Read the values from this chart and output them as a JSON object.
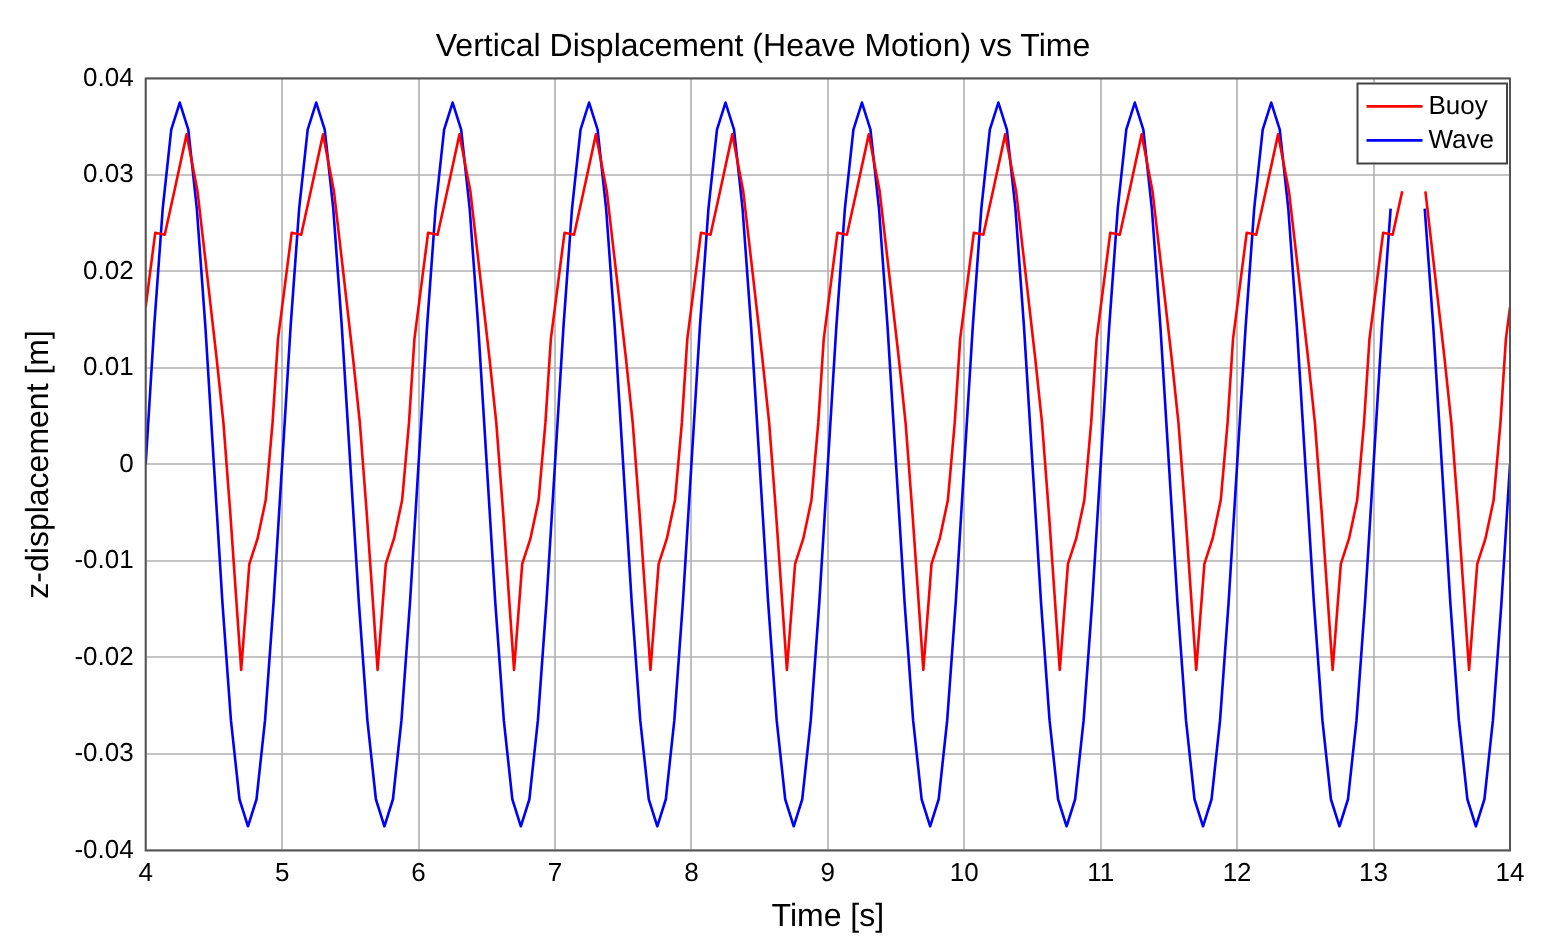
{
  "chart_data": {
    "type": "line",
    "title": "Vertical Displacement (Heave Motion) vs Time",
    "xlabel": "Time [s]",
    "ylabel": "z-displacement [m]",
    "xlim": [
      4,
      14
    ],
    "xticks": [
      4,
      5,
      6,
      7,
      8,
      9,
      10,
      11,
      12,
      13,
      14
    ],
    "ylim": [
      -0.04,
      0.04
    ],
    "yticks": [
      -0.04,
      -0.03,
      -0.02,
      -0.01,
      0,
      0.01,
      0.02,
      0.03,
      0.04
    ],
    "grid": true,
    "legend": "top right",
    "marker": "none",
    "line_style": "solid",
    "series": [
      {
        "name": "Buoy",
        "color": "#ff0000",
        "x": [
          4,
          4.07,
          4.14,
          4.21,
          4.3,
          4.38,
          4.45,
          4.52,
          4.57,
          4.62,
          4.7,
          4.76,
          4.82,
          4.88,
          4.93,
          4.97,
          5,
          5.07,
          5.14,
          5.21,
          5.3,
          5.38,
          5.45,
          5.52,
          5.57,
          5.62,
          5.7,
          5.76,
          5.82,
          5.88,
          5.93,
          5.97,
          6,
          6.07,
          6.14,
          6.21,
          6.3,
          6.38,
          6.45,
          6.52,
          6.57,
          6.62,
          6.7,
          6.76,
          6.82,
          6.88,
          6.93,
          6.97,
          7,
          7.07,
          7.14,
          7.21,
          7.3,
          7.38,
          7.45,
          7.52,
          7.57,
          7.62,
          7.7,
          7.76,
          7.82,
          7.88,
          7.93,
          7.97,
          8,
          8.07,
          8.14,
          8.21,
          8.3,
          8.38,
          8.45,
          8.52,
          8.57,
          8.62,
          8.7,
          8.76,
          8.82,
          8.88,
          8.93,
          8.97,
          9,
          9.07,
          9.14,
          9.21,
          9.3,
          9.38,
          9.45,
          9.52,
          9.57,
          9.62,
          9.7,
          9.76,
          9.82,
          9.88,
          9.93,
          9.97,
          10,
          10.07,
          10.14,
          10.21,
          10.3,
          10.38,
          10.45,
          10.52,
          10.57,
          10.62,
          10.7,
          10.76,
          10.82,
          10.88,
          10.93,
          10.97,
          11,
          11.07,
          11.14,
          11.21,
          11.3,
          11.38,
          11.45,
          11.52,
          11.57,
          11.62,
          11.7,
          11.76,
          11.82,
          11.88,
          11.93,
          11.97,
          12,
          12.07,
          12.14,
          12.21,
          12.3,
          12.38,
          12.45,
          12.52,
          12.57,
          12.62,
          12.7,
          12.76,
          12.82,
          12.88,
          12.93,
          12.97,
          13,
          13.07,
          13.14,
          13.21,
          13.3,
          13.38,
          13.45,
          13.52,
          13.57,
          13.62,
          13.7,
          13.76,
          13.82,
          13.88,
          13.93,
          13.97,
          14
        ],
        "values": [
          0.0163,
          0.024,
          0.0238,
          0.0283,
          0.0342,
          0.0283,
          0.0197,
          0.011,
          0.0043,
          -0.005,
          -0.0213,
          -0.0103,
          -0.0077,
          -0.0037,
          0.0043,
          0.013,
          0.0163,
          0.024,
          0.0238,
          0.0283,
          0.0342,
          0.0283,
          0.0197,
          0.011,
          0.0043,
          -0.005,
          -0.0213,
          -0.0103,
          -0.0077,
          -0.0037,
          0.0043,
          0.013,
          0.0163,
          0.024,
          0.0238,
          0.0283,
          0.0342,
          0.0283,
          0.0197,
          0.011,
          0.0043,
          -0.005,
          -0.0213,
          -0.0103,
          -0.0077,
          -0.0037,
          0.0043,
          0.013,
          0.0163,
          0.024,
          0.0238,
          0.0283,
          0.0342,
          0.0283,
          0.0197,
          0.011,
          0.0043,
          -0.005,
          -0.0213,
          -0.0103,
          -0.0077,
          -0.0037,
          0.0043,
          0.013,
          0.0163,
          0.024,
          0.0238,
          0.0283,
          0.0342,
          0.0283,
          0.0197,
          0.011,
          0.0043,
          -0.005,
          -0.0213,
          -0.0103,
          -0.0077,
          -0.0037,
          0.0043,
          0.013,
          0.0163,
          0.024,
          0.0238,
          0.0283,
          0.0342,
          0.0283,
          0.0197,
          0.011,
          0.0043,
          -0.005,
          -0.0213,
          -0.0103,
          -0.0077,
          -0.0037,
          0.0043,
          0.013,
          0.0163,
          0.024,
          0.0238,
          0.0283,
          0.0342,
          0.0283,
          0.0197,
          0.011,
          0.0043,
          -0.005,
          -0.0213,
          -0.0103,
          -0.0077,
          -0.0037,
          0.0043,
          0.013,
          0.0163,
          0.024,
          0.0238,
          0.0283,
          0.0342,
          0.0283,
          0.0197,
          0.011,
          0.0043,
          -0.005,
          -0.0213,
          -0.0103,
          -0.0077,
          -0.0037,
          0.0043,
          0.013,
          0.0163,
          0.024,
          0.0238,
          0.0283,
          0.0342,
          0.0283,
          0.0197,
          0.011,
          0.0043,
          -0.005,
          -0.0213,
          -0.0103,
          -0.0077,
          -0.0037,
          0.0043,
          0.013,
          0.0163,
          0.024,
          0.0238,
          0.0283,
          null,
          0.0283,
          0.0197,
          0.011,
          0.0043,
          -0.005,
          -0.0213,
          -0.0103,
          -0.0077,
          -0.0037,
          0.0043,
          0.013,
          0.0163
        ]
      },
      {
        "name": "Wave",
        "color": "#0000ff",
        "x": [
          4,
          4.0625,
          4.125,
          4.1875,
          4.25,
          4.3125,
          4.375,
          4.4375,
          4.5,
          4.5625,
          4.625,
          4.6875,
          4.75,
          4.8125,
          4.875,
          4.9375,
          5,
          5.0625,
          5.125,
          5.1875,
          5.25,
          5.3125,
          5.375,
          5.4375,
          5.5,
          5.5625,
          5.625,
          5.6875,
          5.75,
          5.8125,
          5.875,
          5.9375,
          6,
          6.0625,
          6.125,
          6.1875,
          6.25,
          6.3125,
          6.375,
          6.4375,
          6.5,
          6.5625,
          6.625,
          6.6875,
          6.75,
          6.8125,
          6.875,
          6.9375,
          7,
          7.0625,
          7.125,
          7.1875,
          7.25,
          7.3125,
          7.375,
          7.4375,
          7.5,
          7.5625,
          7.625,
          7.6875,
          7.75,
          7.8125,
          7.875,
          7.9375,
          8,
          8.0625,
          8.125,
          8.1875,
          8.25,
          8.3125,
          8.375,
          8.4375,
          8.5,
          8.5625,
          8.625,
          8.6875,
          8.75,
          8.8125,
          8.875,
          8.9375,
          9,
          9.0625,
          9.125,
          9.1875,
          9.25,
          9.3125,
          9.375,
          9.4375,
          9.5,
          9.5625,
          9.625,
          9.6875,
          9.75,
          9.8125,
          9.875,
          9.9375,
          10,
          10.0625,
          10.125,
          10.1875,
          10.25,
          10.3125,
          10.375,
          10.4375,
          10.5,
          10.5625,
          10.625,
          10.6875,
          10.75,
          10.8125,
          10.875,
          10.9375,
          11,
          11.0625,
          11.125,
          11.1875,
          11.25,
          11.3125,
          11.375,
          11.4375,
          11.5,
          11.5625,
          11.625,
          11.6875,
          11.75,
          11.8125,
          11.875,
          11.9375,
          12,
          12.0625,
          12.125,
          12.1875,
          12.25,
          12.3125,
          12.375,
          12.4375,
          12.5,
          12.5625,
          12.625,
          12.6875,
          12.75,
          12.8125,
          12.875,
          12.9375,
          13,
          13.0625,
          13.125,
          13.1875,
          13.25,
          13.3125,
          13.375,
          13.4375,
          13.5,
          13.5625,
          13.625,
          13.6875,
          13.75,
          13.8125,
          13.875,
          13.9375,
          14
        ],
        "values": [
          0,
          0.0143,
          0.0265,
          0.0347,
          0.0375,
          0.0347,
          0.0265,
          0.0143,
          0,
          -0.0143,
          -0.0265,
          -0.0347,
          -0.0375,
          -0.0347,
          -0.0265,
          -0.0143,
          0,
          0.0143,
          0.0265,
          0.0347,
          0.0375,
          0.0347,
          0.0265,
          0.0143,
          0,
          -0.0143,
          -0.0265,
          -0.0347,
          -0.0375,
          -0.0347,
          -0.0265,
          -0.0143,
          0,
          0.0143,
          0.0265,
          0.0347,
          0.0375,
          0.0347,
          0.0265,
          0.0143,
          0,
          -0.0143,
          -0.0265,
          -0.0347,
          -0.0375,
          -0.0347,
          -0.0265,
          -0.0143,
          0,
          0.0143,
          0.0265,
          0.0347,
          0.0375,
          0.0347,
          0.0265,
          0.0143,
          0,
          -0.0143,
          -0.0265,
          -0.0347,
          -0.0375,
          -0.0347,
          -0.0265,
          -0.0143,
          0,
          0.0143,
          0.0265,
          0.0347,
          0.0375,
          0.0347,
          0.0265,
          0.0143,
          0,
          -0.0143,
          -0.0265,
          -0.0347,
          -0.0375,
          -0.0347,
          -0.0265,
          -0.0143,
          0,
          0.0143,
          0.0265,
          0.0347,
          0.0375,
          0.0347,
          0.0265,
          0.0143,
          0,
          -0.0143,
          -0.0265,
          -0.0347,
          -0.0375,
          -0.0347,
          -0.0265,
          -0.0143,
          0,
          0.0143,
          0.0265,
          0.0347,
          0.0375,
          0.0347,
          0.0265,
          0.0143,
          0,
          -0.0143,
          -0.0265,
          -0.0347,
          -0.0375,
          -0.0347,
          -0.0265,
          -0.0143,
          0,
          0.0143,
          0.0265,
          0.0347,
          0.0375,
          0.0347,
          0.0265,
          0.0143,
          0,
          -0.0143,
          -0.0265,
          -0.0347,
          -0.0375,
          -0.0347,
          -0.0265,
          -0.0143,
          0,
          0.0143,
          0.0265,
          0.0347,
          0.0375,
          0.0347,
          0.0265,
          0.0143,
          0,
          -0.0143,
          -0.0265,
          -0.0347,
          -0.0375,
          -0.0347,
          -0.0265,
          -0.0143,
          0,
          0.0143,
          0.0265,
          null,
          null,
          null,
          0.0265,
          0.0143,
          0,
          -0.0143,
          -0.0265,
          -0.0347,
          -0.0375,
          -0.0347,
          -0.0265,
          -0.0143,
          0
        ]
      }
    ]
  }
}
